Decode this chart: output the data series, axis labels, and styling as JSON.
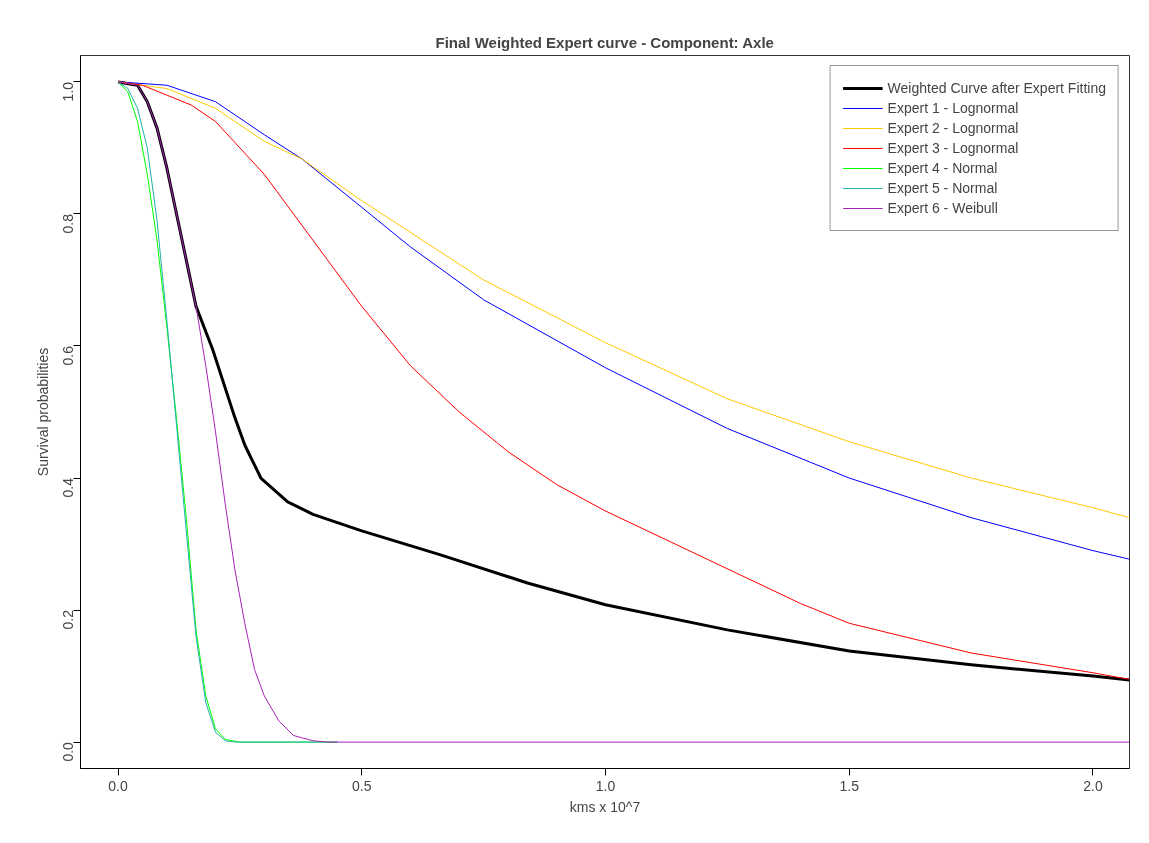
{
  "chart_data": {
    "type": "line",
    "title": "Final Weighted Expert curve - Component: Axle",
    "xlabel": "kms x 10^7",
    "ylabel": "Survival probabilities",
    "xlim": [
      -0.077,
      2.075
    ],
    "ylim": [
      -0.04,
      1.04
    ],
    "xticks": [
      {
        "value": 0,
        "label": "0.0"
      },
      {
        "value": 0.5,
        "label": "0.5"
      },
      {
        "value": 1,
        "label": "1.0"
      },
      {
        "value": 1.5,
        "label": "1.5"
      },
      {
        "value": 2,
        "label": "2.0"
      }
    ],
    "yticks": [
      {
        "value": 0,
        "label": "0.0"
      },
      {
        "value": 0.2,
        "label": "0.2"
      },
      {
        "value": 0.4,
        "label": "0.4"
      },
      {
        "value": 0.6,
        "label": "0.6"
      },
      {
        "value": 0.8,
        "label": "0.8"
      },
      {
        "value": 1,
        "label": "1.0"
      }
    ],
    "grid": false,
    "legend": "top right",
    "marker": "none",
    "line_style": "solid",
    "series": [
      {
        "name": "Weighted Curve after Expert Fitting",
        "color": "#000000",
        "x": [
          0,
          0.04,
          0.06,
          0.08,
          0.1,
          0.12,
          0.14,
          0.16,
          0.194,
          0.239,
          0.26,
          0.293,
          0.348,
          0.4,
          0.5,
          0.66,
          0.84,
          1.0,
          1.25,
          1.5,
          1.75,
          2.0,
          2.075
        ],
        "values": [
          1,
          0.995,
          0.97,
          0.93,
          0.87,
          0.8,
          0.73,
          0.66,
          0.595,
          0.493,
          0.45,
          0.4,
          0.364,
          0.345,
          0.32,
          0.284,
          0.241,
          0.208,
          0.17,
          0.138,
          0.117,
          0.1,
          0.094
        ]
      },
      {
        "name": "Expert 1 - Lognormal",
        "color": "#0000ff",
        "x": [
          0,
          0.1,
          0.2,
          0.3,
          0.378,
          0.5,
          0.6,
          0.75,
          1.0,
          1.25,
          1.5,
          1.75,
          2.0,
          2.075
        ],
        "values": [
          1,
          0.995,
          0.97,
          0.92,
          0.883,
          0.81,
          0.75,
          0.67,
          0.567,
          0.475,
          0.4,
          0.34,
          0.29,
          0.277
        ]
      },
      {
        "name": "Expert 2 - Lognormal",
        "color": "#ffc800",
        "x": [
          0,
          0.1,
          0.2,
          0.3,
          0.378,
          0.5,
          0.75,
          1.0,
          1.25,
          1.5,
          1.75,
          2.0,
          2.075
        ],
        "values": [
          1,
          0.99,
          0.96,
          0.91,
          0.883,
          0.82,
          0.7,
          0.605,
          0.52,
          0.455,
          0.4,
          0.355,
          0.34
        ]
      },
      {
        "name": "Expert 3 - Lognormal",
        "color": "#ff0000",
        "x": [
          0,
          0.05,
          0.1,
          0.15,
          0.2,
          0.3,
          0.4,
          0.5,
          0.6,
          0.7,
          0.8,
          0.9,
          1.0,
          1.2,
          1.4,
          1.5,
          1.75,
          2.0,
          2.075
        ],
        "values": [
          1,
          0.995,
          0.98,
          0.965,
          0.94,
          0.86,
          0.76,
          0.66,
          0.57,
          0.5,
          0.44,
          0.39,
          0.35,
          0.28,
          0.21,
          0.18,
          0.135,
          0.105,
          0.095
        ]
      },
      {
        "name": "Expert 4 - Normal",
        "color": "#00ff00",
        "x": [
          0,
          0.02,
          0.04,
          0.06,
          0.08,
          0.1,
          0.12,
          0.14,
          0.16,
          0.18,
          0.2,
          0.22,
          0.25,
          0.45
        ],
        "values": [
          1,
          0.985,
          0.94,
          0.86,
          0.76,
          0.63,
          0.49,
          0.34,
          0.17,
          0.07,
          0.02,
          0.004,
          0,
          0
        ]
      },
      {
        "name": "Expert 5 - Normal",
        "color": "#20b2aa",
        "x": [
          0,
          0.02,
          0.04,
          0.06,
          0.08,
          0.1,
          0.12,
          0.14,
          0.16,
          0.18,
          0.2,
          0.22,
          0.24,
          0.45
        ],
        "values": [
          1,
          0.99,
          0.96,
          0.9,
          0.79,
          0.64,
          0.48,
          0.32,
          0.16,
          0.06,
          0.015,
          0.002,
          0,
          0
        ]
      },
      {
        "name": "Expert 6 - Weibull",
        "color": "#aa22b8",
        "x": [
          0,
          0.04,
          0.06,
          0.08,
          0.1,
          0.12,
          0.14,
          0.16,
          0.18,
          0.2,
          0.22,
          0.24,
          0.26,
          0.28,
          0.3,
          0.33,
          0.36,
          0.4,
          0.43,
          2.075
        ],
        "values": [
          1,
          0.995,
          0.97,
          0.93,
          0.87,
          0.8,
          0.73,
          0.66,
          0.57,
          0.47,
          0.36,
          0.26,
          0.18,
          0.11,
          0.07,
          0.032,
          0.01,
          0.002,
          0,
          0
        ]
      }
    ]
  }
}
